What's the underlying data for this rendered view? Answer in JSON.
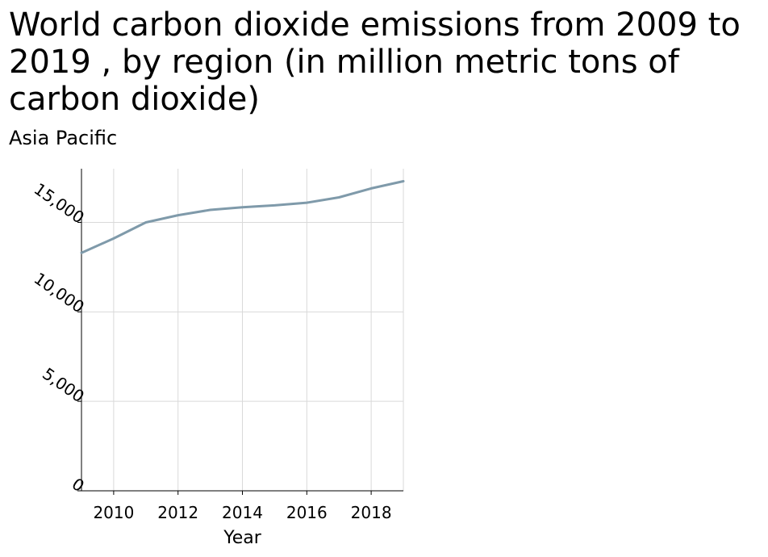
{
  "chart_data": {
    "type": "line",
    "title": "World carbon dioxide emissions from 2009 to 2019 , by region (in million metric tons of carbon dioxide)",
    "subtitle": "Asia Pacific",
    "xlabel": "Year",
    "ylabel": "",
    "xlim": [
      2009,
      2019
    ],
    "ylim": [
      0,
      18000
    ],
    "x_ticks": [
      2010,
      2012,
      2014,
      2016,
      2018
    ],
    "x_tick_labels": [
      "2010",
      "2012",
      "2014",
      "2016",
      "2018"
    ],
    "y_ticks": [
      0,
      5000,
      10000,
      15000
    ],
    "y_tick_labels": [
      "0",
      "5,000",
      "10,000",
      "15,000"
    ],
    "grid": true,
    "legend": "none",
    "series": [
      {
        "color": "#7f9aaa",
        "x": [
          2009,
          2010,
          2011,
          2012,
          2013,
          2014,
          2015,
          2016,
          2017,
          2018,
          2019
        ],
        "values": [
          13300,
          14100,
          15000,
          15400,
          15700,
          15850,
          15950,
          16100,
          16400,
          16900,
          17300
        ]
      }
    ]
  },
  "colors": {
    "grid": "#d9d9d9",
    "axis": "#000000",
    "line": "#7f9aaa"
  }
}
